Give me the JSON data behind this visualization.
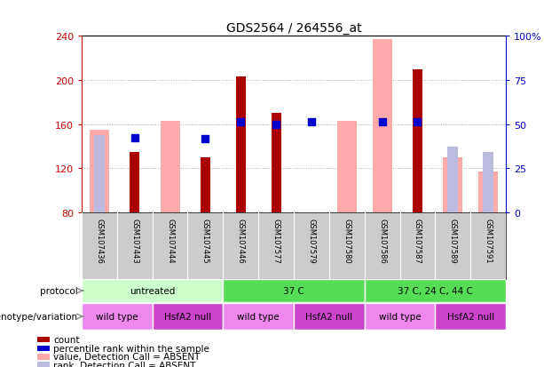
{
  "title": "GDS2564 / 264556_at",
  "samples": [
    "GSM107436",
    "GSM107443",
    "GSM107444",
    "GSM107445",
    "GSM107446",
    "GSM107577",
    "GSM107579",
    "GSM107580",
    "GSM107586",
    "GSM107587",
    "GSM107589",
    "GSM107591"
  ],
  "count": [
    null,
    135,
    null,
    130,
    203,
    170,
    null,
    null,
    null,
    210,
    null,
    null
  ],
  "count_color": "#aa0000",
  "percentile_rank": [
    null,
    148,
    null,
    147,
    162,
    160,
    162,
    null,
    162,
    162,
    null,
    null
  ],
  "percentile_rank_color": "#0000cc",
  "value_absent": [
    155,
    null,
    163,
    null,
    null,
    null,
    null,
    163,
    237,
    null,
    130,
    117
  ],
  "value_absent_color": "#ffaaaa",
  "rank_absent": [
    150,
    null,
    null,
    null,
    null,
    null,
    null,
    null,
    null,
    null,
    140,
    135
  ],
  "rank_absent_color": "#bbbbdd",
  "ylim_left": [
    80,
    240
  ],
  "ylim_right": [
    0,
    100
  ],
  "yticks_left": [
    80,
    120,
    160,
    200,
    240
  ],
  "yticks_right": [
    0,
    25,
    50,
    75,
    100
  ],
  "ytick_labels_left": [
    "80",
    "120",
    "160",
    "200",
    "240"
  ],
  "ytick_labels_right": [
    "0",
    "25",
    "50",
    "75",
    "100%"
  ],
  "left_tick_color": "#cc0000",
  "right_tick_color": "#0000cc",
  "protocol_groups": [
    {
      "label": "untreated",
      "start": 0,
      "end": 4,
      "color": "#ccffcc"
    },
    {
      "label": "37 C",
      "start": 4,
      "end": 8,
      "color": "#55dd55"
    },
    {
      "label": "37 C, 24 C, 44 C",
      "start": 8,
      "end": 12,
      "color": "#55dd55"
    }
  ],
  "genotype_groups": [
    {
      "label": "wild type",
      "start": 0,
      "end": 2,
      "color": "#ee88ee"
    },
    {
      "label": "HsfA2 null",
      "start": 2,
      "end": 4,
      "color": "#cc44cc"
    },
    {
      "label": "wild type",
      "start": 4,
      "end": 6,
      "color": "#ee88ee"
    },
    {
      "label": "HsfA2 null",
      "start": 6,
      "end": 8,
      "color": "#cc44cc"
    },
    {
      "label": "wild type",
      "start": 8,
      "end": 10,
      "color": "#ee88ee"
    },
    {
      "label": "HsfA2 null",
      "start": 10,
      "end": 12,
      "color": "#cc44cc"
    }
  ],
  "background_color": "#ffffff",
  "plot_bg_color": "#ffffff",
  "grid_color": "#aaaaaa",
  "sample_row_bg": "#cccccc",
  "legend_items": [
    {
      "color": "#aa0000",
      "label": "count"
    },
    {
      "color": "#0000cc",
      "label": "percentile rank within the sample"
    },
    {
      "color": "#ffaaaa",
      "label": "value, Detection Call = ABSENT"
    },
    {
      "color": "#bbbbdd",
      "label": "rank, Detection Call = ABSENT"
    }
  ]
}
